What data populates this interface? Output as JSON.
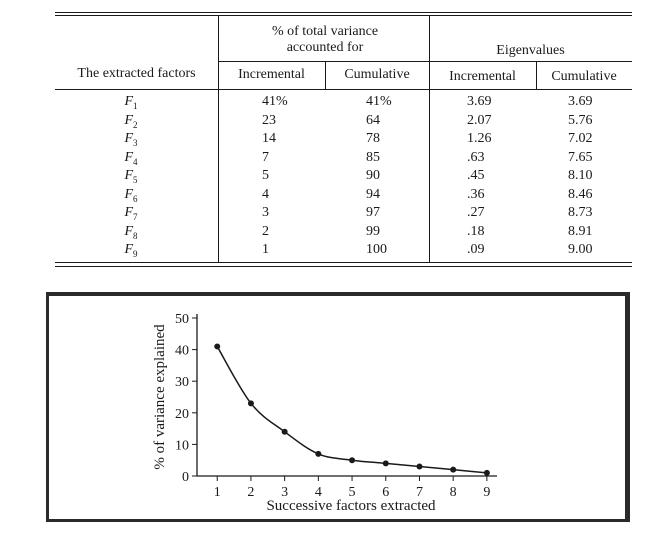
{
  "table": {
    "row_header": "The extracted factors",
    "group1_header": "% of total variance accounted for",
    "group2_header": "Eigenvalues",
    "col_incremental_1": "Incremental",
    "col_cumulative_1": "Cumulative",
    "col_incremental_2": "Incremental",
    "col_cumulative_2": "Cumulative",
    "rows": [
      {
        "factor": "F",
        "sub": "1",
        "var_inc": "41%",
        "var_cum": "41%",
        "eig_inc": "3.69",
        "eig_cum": "3.69"
      },
      {
        "factor": "F",
        "sub": "2",
        "var_inc": "23",
        "var_cum": "64",
        "eig_inc": "2.07",
        "eig_cum": "5.76"
      },
      {
        "factor": "F",
        "sub": "3",
        "var_inc": "14",
        "var_cum": "78",
        "eig_inc": "1.26",
        "eig_cum": "7.02"
      },
      {
        "factor": "F",
        "sub": "4",
        "var_inc": "7",
        "var_cum": "85",
        "eig_inc": ".63",
        "eig_cum": "7.65"
      },
      {
        "factor": "F",
        "sub": "5",
        "var_inc": "5",
        "var_cum": "90",
        "eig_inc": ".45",
        "eig_cum": "8.10"
      },
      {
        "factor": "F",
        "sub": "6",
        "var_inc": "4",
        "var_cum": "94",
        "eig_inc": ".36",
        "eig_cum": "8.46"
      },
      {
        "factor": "F",
        "sub": "7",
        "var_inc": "3",
        "var_cum": "97",
        "eig_inc": ".27",
        "eig_cum": "8.73"
      },
      {
        "factor": "F",
        "sub": "8",
        "var_inc": "2",
        "var_cum": "99",
        "eig_inc": ".18",
        "eig_cum": "8.91"
      },
      {
        "factor": "F",
        "sub": "9",
        "var_inc": "1",
        "var_cum": "100",
        "eig_inc": ".09",
        "eig_cum": "9.00"
      }
    ]
  },
  "chart_data": {
    "type": "line",
    "title": "",
    "xlabel": "Successive factors extracted",
    "ylabel": "% of variance explained",
    "x": [
      1,
      2,
      3,
      4,
      5,
      6,
      7,
      8,
      9
    ],
    "series": [
      {
        "values": [
          41,
          23,
          14,
          7,
          5,
          4,
          3,
          2,
          1
        ]
      }
    ],
    "xlim": [
      0.4,
      9.3
    ],
    "ylim": [
      0,
      50
    ],
    "yticks": [
      0,
      10,
      20,
      30,
      40,
      50
    ],
    "xticks": [
      1,
      2,
      3,
      4,
      5,
      6,
      7,
      8,
      9
    ],
    "grid": false,
    "line_color": "#1a1a1a"
  }
}
